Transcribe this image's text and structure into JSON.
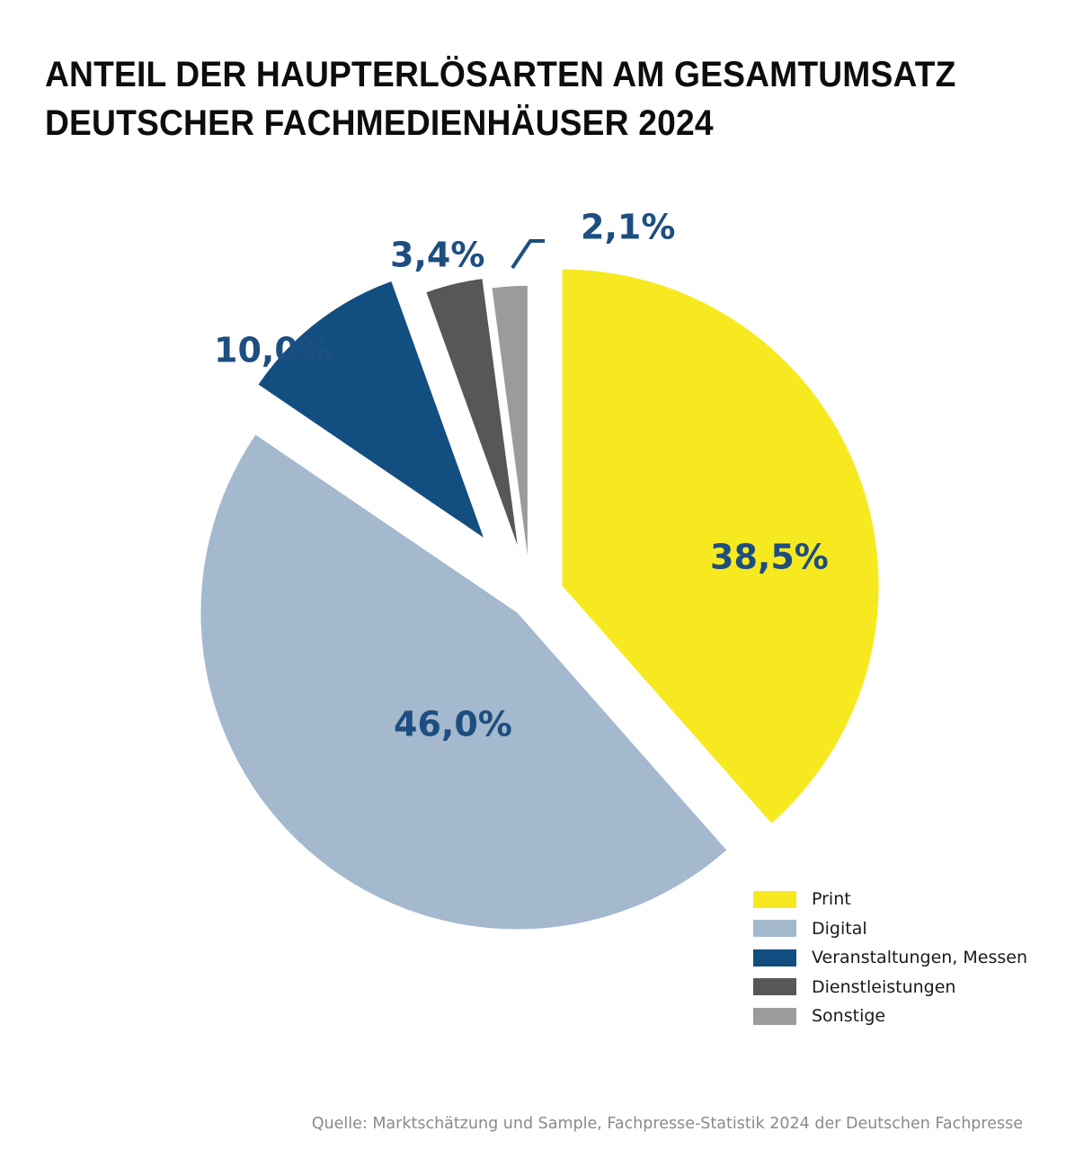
{
  "title": {
    "line1": "ANTEIL DER HAUPTERLÖSARTEN AM GESAMTUMSATZ",
    "line2": "DEUTSCHER FACHMEDIENHÄUSER 2024"
  },
  "source": "Quelle: Marktschätzung und Sample, Fachpresse-Statistik 2024 der Deutschen Fachpresse",
  "chart_data": {
    "type": "pie",
    "title": "ANTEIL DER HAUPTERLÖSARTEN AM GESAMTUMSATZ DEUTSCHER FACHMEDIENHÄUSER 2024",
    "unit": "%",
    "start_angle_deg": 0,
    "direction": "clockwise",
    "exploded": true,
    "legend_position": "bottom-right",
    "slices": [
      {
        "name": "Print",
        "value": 38.5,
        "label": "38,5%",
        "color": "#f7e920",
        "label_placement": "inside"
      },
      {
        "name": "Digital",
        "value": 46.0,
        "label": "46,0%",
        "color": "#a4b8ce",
        "label_placement": "inside"
      },
      {
        "name": "Veranstaltungen, Messen",
        "value": 10.0,
        "label": "10,0%",
        "color": "#124e80",
        "label_placement": "outside"
      },
      {
        "name": "Dienstleistungen",
        "value": 3.4,
        "label": "3,4%",
        "color": "#575757",
        "label_placement": "outside"
      },
      {
        "name": "Sonstige",
        "value": 2.1,
        "label": "2,1%",
        "color": "#9b9b9b",
        "label_placement": "outside-with-leader"
      }
    ],
    "label_color": "#1d4e80"
  },
  "legend": [
    {
      "label": "Print",
      "color": "#f7e920"
    },
    {
      "label": "Digital",
      "color": "#a4b8ce"
    },
    {
      "label": "Veranstaltungen, Messen",
      "color": "#124e80"
    },
    {
      "label": "Dienstleistungen",
      "color": "#575757"
    },
    {
      "label": "Sonstige",
      "color": "#9b9b9b"
    }
  ]
}
